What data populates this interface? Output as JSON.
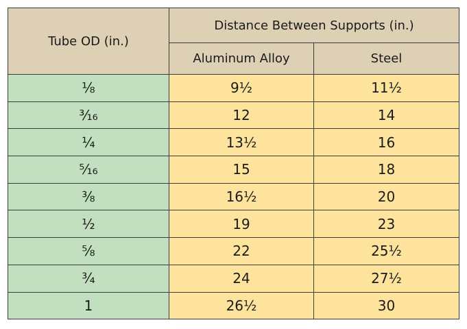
{
  "table": {
    "header": {
      "first": "Tube OD (in.)",
      "group": "Distance Between Supports (in.)",
      "columns": [
        "Aluminum Alloy",
        "Steel"
      ]
    },
    "rows": [
      [
        "⅛",
        "9½",
        "11½"
      ],
      [
        "³⁄₁₆",
        "12",
        "14"
      ],
      [
        "¼",
        "13½",
        "16"
      ],
      [
        "⁵⁄₁₆",
        "15",
        "18"
      ],
      [
        "⅜",
        "16½",
        "20"
      ],
      [
        "½",
        "19",
        "23"
      ],
      [
        "⅝",
        "22",
        "25½"
      ],
      [
        "¾",
        "24",
        "27½"
      ],
      [
        "1",
        "26½",
        "30"
      ]
    ]
  }
}
